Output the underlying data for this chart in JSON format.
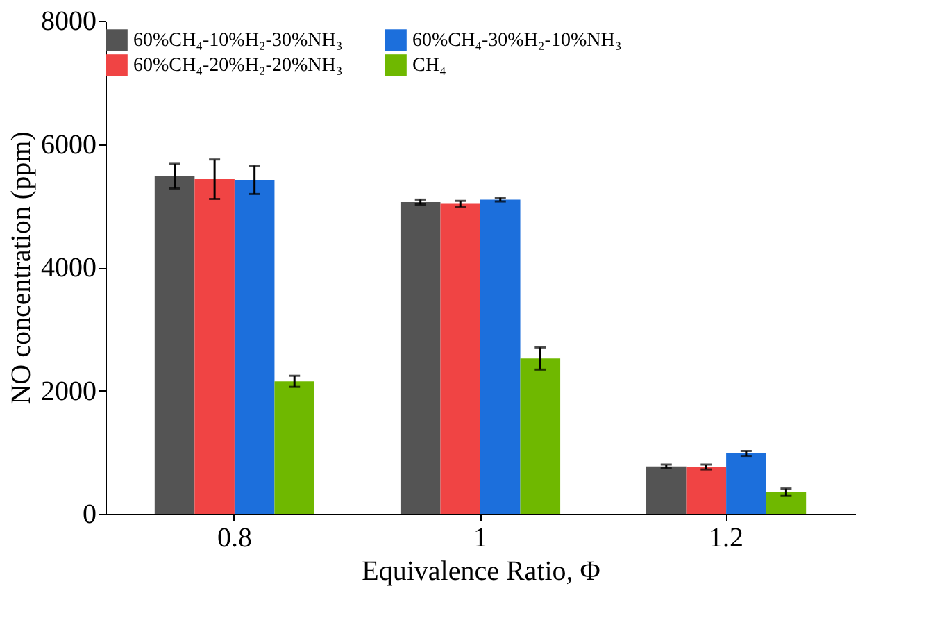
{
  "chart_data": {
    "type": "bar",
    "xlabel": "Equivalence Ratio, Φ",
    "ylabel": "NO concentration (ppm)",
    "categories": [
      "0.8",
      "1",
      "1.2"
    ],
    "series": [
      {
        "name": "60%CH₄-10%H₂-30%NH₃",
        "color": "#545454",
        "values": [
          5480,
          5060,
          770
        ],
        "errors": [
          200,
          40,
          30
        ]
      },
      {
        "name": "60%CH₄-20%H₂-20%NH₃",
        "color": "#f04444",
        "values": [
          5430,
          5030,
          760
        ],
        "errors": [
          320,
          50,
          40
        ]
      },
      {
        "name": "60%CH₄-30%H₂-10%NH₃",
        "color": "#1c6fdc",
        "values": [
          5420,
          5100,
          980
        ],
        "errors": [
          230,
          30,
          40
        ]
      },
      {
        "name": "CH₄",
        "color": "#6fb800",
        "values": [
          2150,
          2520,
          350
        ],
        "errors": [
          90,
          180,
          60
        ]
      }
    ],
    "ylim": [
      0,
      8000
    ],
    "yticks": [
      0,
      2000,
      4000,
      6000,
      8000
    ],
    "grid": false,
    "legend": "top"
  }
}
